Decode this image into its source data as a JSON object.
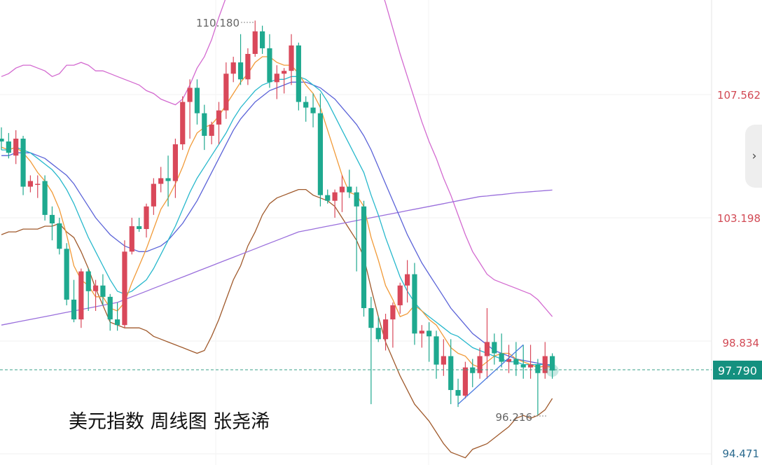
{
  "chart_data": {
    "type": "candlestick",
    "title": "美元指数 周线图 张尧浠",
    "y_axis_labels": [
      "107.562",
      "103.198",
      "98.834",
      "94.471"
    ],
    "current_price": "97.790",
    "annotations": {
      "high": "110.180",
      "low": "96.216"
    },
    "ylim": [
      94.2,
      111.6
    ],
    "colors": {
      "up": "#d9485a",
      "down": "#1ea98f",
      "ma5": "#f19a38",
      "ma10": "#27b8cc",
      "ma20": "#5b63d8",
      "ma_long": "#9a6fdc",
      "boll_upper": "#d36ad0",
      "boll_lower": "#a05a2c",
      "trend": "#4a7be0"
    },
    "candles": [
      [
        0,
        106.0,
        106.4,
        105.6,
        105.9
      ],
      [
        1,
        105.9,
        106.2,
        105.3,
        105.5
      ],
      [
        2,
        105.4,
        106.3,
        105.1,
        106.0
      ],
      [
        3,
        106.0,
        106.1,
        104.0,
        104.3
      ],
      [
        4,
        104.3,
        104.7,
        104.1,
        104.5
      ],
      [
        5,
        104.4,
        104.7,
        103.9,
        104.4
      ],
      [
        6,
        104.5,
        104.7,
        103.1,
        103.3
      ],
      [
        7,
        103.3,
        103.6,
        102.4,
        103.0
      ],
      [
        8,
        103.0,
        103.2,
        101.9,
        102.1
      ],
      [
        9,
        102.1,
        102.3,
        100.1,
        100.3
      ],
      [
        10,
        100.3,
        101.0,
        99.5,
        99.6
      ],
      [
        11,
        99.6,
        101.4,
        99.3,
        101.3
      ],
      [
        12,
        101.3,
        101.4,
        99.9,
        100.6
      ],
      [
        13,
        100.6,
        101.0,
        99.9,
        100.8
      ],
      [
        14,
        100.8,
        101.2,
        100.1,
        100.4
      ],
      [
        15,
        100.4,
        100.5,
        99.2,
        99.6
      ],
      [
        16,
        99.6,
        100.2,
        99.2,
        99.4
      ],
      [
        17,
        99.4,
        102.4,
        99.3,
        102.0
      ],
      [
        18,
        102.0,
        103.2,
        101.9,
        102.9
      ],
      [
        19,
        102.9,
        103.2,
        102.7,
        102.8
      ],
      [
        20,
        102.8,
        103.7,
        102.5,
        103.6
      ],
      [
        21,
        103.6,
        104.6,
        103.3,
        104.4
      ],
      [
        22,
        104.4,
        105.0,
        104.1,
        104.6
      ],
      [
        23,
        104.6,
        105.4,
        103.6,
        104.5
      ],
      [
        24,
        104.5,
        106.0,
        103.9,
        105.8
      ],
      [
        25,
        105.8,
        107.5,
        105.6,
        107.3
      ],
      [
        26,
        107.3,
        108.1,
        106.0,
        107.8
      ],
      [
        27,
        107.8,
        108.1,
        106.5,
        106.9
      ],
      [
        28,
        106.9,
        107.2,
        105.6,
        106.1
      ],
      [
        29,
        106.1,
        106.6,
        105.8,
        106.5
      ],
      [
        30,
        106.5,
        107.3,
        105.8,
        107.0
      ],
      [
        31,
        107.0,
        108.7,
        106.7,
        108.3
      ],
      [
        32,
        108.3,
        108.9,
        108.0,
        108.7
      ],
      [
        33,
        108.7,
        109.7,
        107.9,
        108.1
      ],
      [
        34,
        108.1,
        109.2,
        107.9,
        109.0
      ],
      [
        35,
        109.0,
        110.18,
        108.9,
        109.8
      ],
      [
        36,
        109.8,
        110.0,
        109.0,
        109.2
      ],
      [
        37,
        109.2,
        109.7,
        107.8,
        108.0
      ],
      [
        38,
        108.0,
        108.6,
        107.4,
        108.3
      ],
      [
        39,
        108.3,
        108.5,
        107.6,
        108.4
      ],
      [
        40,
        108.4,
        109.7,
        107.9,
        109.3
      ],
      [
        41,
        109.3,
        109.4,
        107.0,
        107.3
      ],
      [
        42,
        107.3,
        107.5,
        106.6,
        107.1
      ],
      [
        43,
        107.1,
        107.6,
        106.4,
        106.9
      ],
      [
        44,
        106.9,
        107.6,
        103.6,
        104.0
      ],
      [
        45,
        104.0,
        104.2,
        103.7,
        103.8
      ],
      [
        46,
        103.8,
        104.2,
        103.2,
        104.1
      ],
      [
        47,
        104.1,
        104.7,
        103.4,
        104.3
      ],
      [
        48,
        104.3,
        104.9,
        103.9,
        104.1
      ],
      [
        49,
        104.1,
        104.3,
        101.3,
        103.6
      ],
      [
        50,
        103.6,
        103.8,
        99.7,
        100.0
      ],
      [
        51,
        100.0,
        100.4,
        96.6,
        99.3
      ],
      [
        52,
        99.3,
        99.7,
        98.8,
        98.9
      ],
      [
        53,
        98.9,
        99.8,
        98.5,
        99.6
      ],
      [
        54,
        99.6,
        100.2,
        98.6,
        100.1
      ],
      [
        55,
        100.1,
        100.9,
        99.8,
        100.8
      ],
      [
        56,
        100.8,
        101.7,
        100.2,
        101.2
      ],
      [
        57,
        101.2,
        101.6,
        98.7,
        99.1
      ],
      [
        58,
        99.1,
        99.4,
        98.6,
        99.2
      ],
      [
        59,
        99.2,
        99.5,
        98.1,
        99.0
      ],
      [
        60,
        99.0,
        99.2,
        97.5,
        98.0
      ],
      [
        61,
        98.0,
        98.9,
        97.6,
        98.3
      ],
      [
        62,
        98.3,
        98.9,
        96.6,
        97.1
      ],
      [
        63,
        97.1,
        97.5,
        96.5,
        96.9
      ],
      [
        64,
        96.9,
        98.1,
        96.8,
        97.9
      ],
      [
        65,
        97.9,
        98.2,
        97.2,
        97.7
      ],
      [
        66,
        97.7,
        98.6,
        97.5,
        98.3
      ],
      [
        67,
        98.3,
        100.0,
        97.5,
        98.8
      ],
      [
        68,
        98.8,
        99.1,
        98.0,
        98.4
      ],
      [
        69,
        98.4,
        99.1,
        97.9,
        98.1
      ],
      [
        70,
        98.1,
        98.7,
        97.7,
        98.2
      ],
      [
        71,
        98.2,
        98.8,
        97.6,
        98.0
      ],
      [
        72,
        98.0,
        98.7,
        97.5,
        97.9
      ],
      [
        73,
        97.9,
        98.7,
        97.5,
        98.0
      ],
      [
        74,
        98.0,
        98.2,
        96.216,
        97.7
      ],
      [
        75,
        97.7,
        98.8,
        97.5,
        98.3
      ],
      [
        76,
        98.3,
        98.4,
        97.5,
        97.79
      ]
    ],
    "ma5": [
      105.7,
      105.6,
      105.7,
      105.5,
      105.2,
      104.8,
      104.5,
      104.1,
      103.5,
      102.6,
      101.5,
      101.0,
      100.8,
      100.4,
      100.4,
      100.0,
      99.9,
      100.2,
      100.9,
      101.5,
      102.1,
      102.8,
      103.5,
      103.9,
      104.4,
      105.0,
      105.7,
      106.2,
      106.4,
      106.5,
      106.8,
      107.2,
      107.6,
      108.0,
      108.3,
      108.7,
      108.9,
      108.9,
      108.7,
      108.6,
      108.6,
      108.3,
      107.9,
      107.6,
      107.1,
      106.3,
      105.5,
      104.7,
      104.1,
      104.0,
      103.6,
      102.5,
      101.7,
      100.8,
      100.3,
      99.7,
      99.8,
      100.1,
      99.9,
      99.6,
      99.4,
      99.0,
      98.6,
      98.4,
      98.3,
      98.0,
      97.9,
      98.1,
      98.3,
      98.4,
      98.4,
      98.2,
      98.1,
      98.0,
      97.9,
      97.95,
      97.9
    ],
    "ma10": [
      105.6,
      105.6,
      105.7,
      105.6,
      105.5,
      105.3,
      105.1,
      104.9,
      104.6,
      104.2,
      103.7,
      103.1,
      102.5,
      102.0,
      101.5,
      101.0,
      100.6,
      100.5,
      100.6,
      100.8,
      101.0,
      101.4,
      101.9,
      102.4,
      102.9,
      103.5,
      104.1,
      104.6,
      105.0,
      105.4,
      105.8,
      106.2,
      106.7,
      107.1,
      107.4,
      107.7,
      107.9,
      108.0,
      108.1,
      108.1,
      108.2,
      108.2,
      108.1,
      107.9,
      107.7,
      107.3,
      106.8,
      106.3,
      105.8,
      105.3,
      104.8,
      104.0,
      103.3,
      102.5,
      101.8,
      101.1,
      100.6,
      100.2,
      99.9,
      99.7,
      99.5,
      99.3,
      99.1,
      99.0,
      98.8,
      98.6,
      98.5,
      98.4,
      98.3,
      98.2,
      98.1,
      98.1,
      98.0,
      98.0,
      98.0,
      98.0,
      98.0
    ],
    "ma20": [
      105.4,
      105.4,
      105.5,
      105.5,
      105.5,
      105.4,
      105.3,
      105.1,
      104.9,
      104.7,
      104.4,
      104.0,
      103.6,
      103.2,
      102.9,
      102.6,
      102.4,
      102.2,
      102.1,
      102.0,
      102.0,
      102.1,
      102.2,
      102.4,
      102.7,
      103.0,
      103.4,
      103.8,
      104.3,
      104.8,
      105.3,
      105.8,
      106.3,
      106.7,
      107.0,
      107.3,
      107.5,
      107.7,
      107.8,
      107.9,
      108.0,
      108.0,
      108.0,
      107.9,
      107.8,
      107.6,
      107.4,
      107.1,
      106.8,
      106.5,
      106.1,
      105.6,
      105.0,
      104.4,
      103.8,
      103.2,
      102.6,
      102.1,
      101.6,
      101.2,
      100.8,
      100.4,
      100.0,
      99.7,
      99.4,
      99.1,
      98.9,
      98.7,
      98.5,
      98.4,
      98.3,
      98.2,
      98.15,
      98.1,
      98.05,
      98.0,
      97.95
    ],
    "ma_long": [
      99.4,
      99.45,
      99.5,
      99.55,
      99.6,
      99.65,
      99.7,
      99.75,
      99.8,
      99.85,
      99.9,
      99.95,
      100.0,
      100.05,
      100.1,
      100.15,
      100.2,
      100.3,
      100.4,
      100.5,
      100.6,
      100.7,
      100.8,
      100.9,
      101.0,
      101.1,
      101.2,
      101.3,
      101.4,
      101.5,
      101.6,
      101.7,
      101.8,
      101.9,
      102.0,
      102.1,
      102.2,
      102.3,
      102.4,
      102.5,
      102.6,
      102.7,
      102.75,
      102.8,
      102.85,
      102.9,
      102.95,
      103.0,
      103.05,
      103.1,
      103.15,
      103.2,
      103.25,
      103.3,
      103.35,
      103.4,
      103.45,
      103.5,
      103.55,
      103.6,
      103.65,
      103.7,
      103.75,
      103.8,
      103.85,
      103.9,
      103.95,
      103.97,
      104.0,
      104.02,
      104.05,
      104.08,
      104.1,
      104.12,
      104.14,
      104.16,
      104.18
    ],
    "boll_upper": [
      108.2,
      108.3,
      108.5,
      108.6,
      108.6,
      108.5,
      108.4,
      108.2,
      108.3,
      108.6,
      108.6,
      108.7,
      108.6,
      108.4,
      108.4,
      108.3,
      108.2,
      108.1,
      108.0,
      107.9,
      107.7,
      107.6,
      107.4,
      107.3,
      107.2,
      107.4,
      107.9,
      108.5,
      108.9,
      109.5,
      110.3,
      111.0,
      111.6,
      112.2,
      112.5,
      112.8,
      113.0,
      113.2,
      113.2,
      113.0,
      112.9,
      112.9,
      113.0,
      113.1,
      113.3,
      113.5,
      113.8,
      113.8,
      113.6,
      113.4,
      113.0,
      112.4,
      111.6,
      110.8,
      109.9,
      109.0,
      108.2,
      107.4,
      106.6,
      105.9,
      105.3,
      104.6,
      104.0,
      103.3,
      102.6,
      102.0,
      101.6,
      101.2,
      101.0,
      100.9,
      100.8,
      100.7,
      100.6,
      100.5,
      100.3,
      100.0,
      99.7
    ],
    "boll_lower": [
      102.6,
      102.7,
      102.7,
      102.8,
      102.8,
      102.8,
      102.9,
      102.9,
      103.0,
      102.7,
      102.5,
      102.0,
      101.4,
      100.7,
      100.1,
      99.5,
      99.4,
      99.3,
      99.3,
      99.3,
      99.2,
      99.0,
      98.9,
      98.8,
      98.7,
      98.6,
      98.5,
      98.4,
      98.5,
      99.0,
      99.6,
      100.3,
      101.0,
      101.5,
      102.2,
      102.7,
      103.3,
      103.7,
      103.9,
      104.0,
      104.1,
      104.2,
      104.2,
      104.0,
      103.9,
      103.8,
      103.6,
      103.2,
      102.8,
      102.4,
      101.8,
      100.7,
      99.7,
      98.8,
      98.2,
      97.6,
      97.1,
      96.6,
      96.3,
      96.0,
      95.6,
      95.2,
      94.9,
      94.8,
      94.7,
      95.0,
      95.1,
      95.2,
      95.4,
      95.6,
      95.8,
      96.1,
      96.2,
      96.1,
      96.2,
      96.4,
      96.8
    ],
    "trendline": {
      "from": [
        63,
        96.6
      ],
      "to": [
        72,
        98.7
      ]
    }
  }
}
